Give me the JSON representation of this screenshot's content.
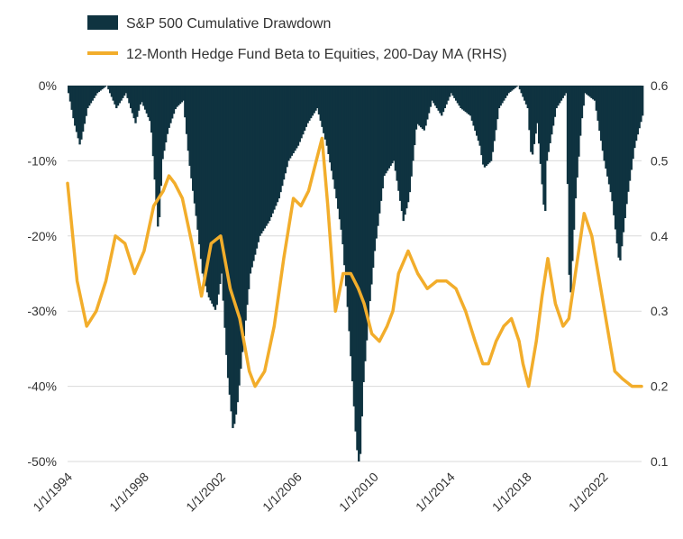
{
  "chart_data": {
    "type": "bar+line",
    "legend": [
      {
        "name": "S&P 500 Cumulative Drawdown",
        "type": "bar",
        "color": "#0f3340"
      },
      {
        "name": "12-Month Hedge Fund Beta to Equities, 200-Day MA (RHS)",
        "type": "line",
        "color": "#f2ad2b"
      }
    ],
    "y_left": {
      "ticks": [
        0,
        -10,
        -20,
        -30,
        -40,
        -50
      ],
      "tick_labels": [
        "0%",
        "-10%",
        "-20%",
        "-30%",
        "-40%",
        "-50%"
      ],
      "range": [
        -50,
        0
      ]
    },
    "y_right": {
      "ticks": [
        0.6,
        0.5,
        0.4,
        0.3,
        0.2,
        0.1
      ],
      "tick_labels": [
        "0.6",
        "0.5",
        "0.4",
        "0.3",
        "0.2",
        "0.1"
      ],
      "range": [
        0.1,
        0.6
      ]
    },
    "x_axis": {
      "range": [
        1994.0,
        2024.0
      ],
      "ticks": [
        1994,
        1998,
        2002,
        2006,
        2010,
        2014,
        2018,
        2022
      ],
      "tick_labels": [
        "1/1/1994",
        "1/1/1998",
        "1/1/2002",
        "1/1/2006",
        "1/1/2010",
        "1/1/2014",
        "1/1/2018",
        "1/1/2022"
      ]
    },
    "drawdown_series": {
      "name": "S&P 500 Cumulative Drawdown",
      "x": [
        1994.0,
        1994.3,
        1994.6,
        1995.0,
        1995.5,
        1996.0,
        1996.5,
        1997.0,
        1997.5,
        1997.8,
        1998.3,
        1998.7,
        1998.9,
        1999.2,
        1999.6,
        2000.0,
        2000.3,
        2000.7,
        2001.0,
        2001.3,
        2001.7,
        2002.0,
        2002.3,
        2002.6,
        2002.8,
        2003.1,
        2003.5,
        2004.0,
        2004.5,
        2005.0,
        2005.5,
        2006.0,
        2006.5,
        2007.0,
        2007.5,
        2007.8,
        2008.0,
        2008.3,
        2008.6,
        2008.8,
        2009.0,
        2009.2,
        2009.4,
        2009.7,
        2010.0,
        2010.5,
        2011.0,
        2011.5,
        2011.8,
        2012.2,
        2012.6,
        2013.0,
        2013.5,
        2014.0,
        2014.5,
        2015.0,
        2015.5,
        2015.7,
        2016.1,
        2016.5,
        2017.0,
        2017.5,
        2018.0,
        2018.2,
        2018.5,
        2018.9,
        2019.0,
        2019.5,
        2020.0,
        2020.2,
        2020.5,
        2020.8,
        2021.0,
        2021.5,
        2022.0,
        2022.4,
        2022.8,
        2023.2,
        2023.6,
        2024.0
      ],
      "values": [
        -1,
        -5,
        -8,
        -3,
        -1,
        0,
        -3,
        -1,
        -5,
        -2,
        -5,
        -20,
        -10,
        -6,
        -3,
        -2,
        -10,
        -18,
        -25,
        -28,
        -30,
        -25,
        -38,
        -46,
        -43,
        -35,
        -25,
        -20,
        -18,
        -15,
        -10,
        -8,
        -5,
        -3,
        -8,
        -12,
        -15,
        -20,
        -30,
        -38,
        -46,
        -52,
        -40,
        -30,
        -22,
        -12,
        -10,
        -18,
        -15,
        -5,
        -6,
        -2,
        -4,
        -1,
        -3,
        -4,
        -8,
        -11,
        -10,
        -3,
        -1,
        0,
        -3,
        -10,
        -5,
        -18,
        -10,
        -3,
        -1,
        -30,
        -15,
        -5,
        -1,
        -2,
        -10,
        -15,
        -24,
        -15,
        -8,
        -4
      ]
    },
    "beta_series": {
      "name": "12-Month Hedge Fund Beta to Equities, 200-Day MA (RHS)",
      "x": [
        1994.0,
        1994.5,
        1995.0,
        1995.5,
        1996.0,
        1996.5,
        1997.0,
        1997.5,
        1998.0,
        1998.5,
        1999.0,
        1999.3,
        1999.6,
        2000.0,
        2000.5,
        2001.0,
        2001.5,
        2002.0,
        2002.5,
        2003.0,
        2003.5,
        2003.8,
        2004.3,
        2004.8,
        2005.3,
        2005.8,
        2006.2,
        2006.6,
        2007.0,
        2007.3,
        2007.6,
        2008.0,
        2008.4,
        2008.8,
        2009.2,
        2009.5,
        2009.9,
        2010.3,
        2010.7,
        2011.0,
        2011.3,
        2011.8,
        2012.3,
        2012.8,
        2013.3,
        2013.8,
        2014.3,
        2014.8,
        2015.3,
        2015.7,
        2016.0,
        2016.4,
        2016.8,
        2017.2,
        2017.6,
        2017.8,
        2018.1,
        2018.5,
        2018.8,
        2019.1,
        2019.5,
        2019.9,
        2020.2,
        2020.6,
        2021.0,
        2021.4,
        2021.8,
        2022.2,
        2022.6,
        2023.0,
        2023.5,
        2024.0
      ],
      "values": [
        0.47,
        0.34,
        0.28,
        0.3,
        0.34,
        0.4,
        0.39,
        0.35,
        0.38,
        0.44,
        0.46,
        0.48,
        0.47,
        0.45,
        0.39,
        0.32,
        0.39,
        0.4,
        0.33,
        0.29,
        0.22,
        0.2,
        0.22,
        0.28,
        0.37,
        0.45,
        0.44,
        0.46,
        0.5,
        0.53,
        0.44,
        0.3,
        0.35,
        0.35,
        0.33,
        0.31,
        0.27,
        0.26,
        0.28,
        0.3,
        0.35,
        0.38,
        0.35,
        0.33,
        0.34,
        0.34,
        0.33,
        0.3,
        0.26,
        0.23,
        0.23,
        0.26,
        0.28,
        0.29,
        0.26,
        0.23,
        0.2,
        0.26,
        0.32,
        0.37,
        0.31,
        0.28,
        0.29,
        0.36,
        0.43,
        0.4,
        0.34,
        0.28,
        0.22,
        0.21,
        0.2,
        0.2
      ]
    }
  }
}
